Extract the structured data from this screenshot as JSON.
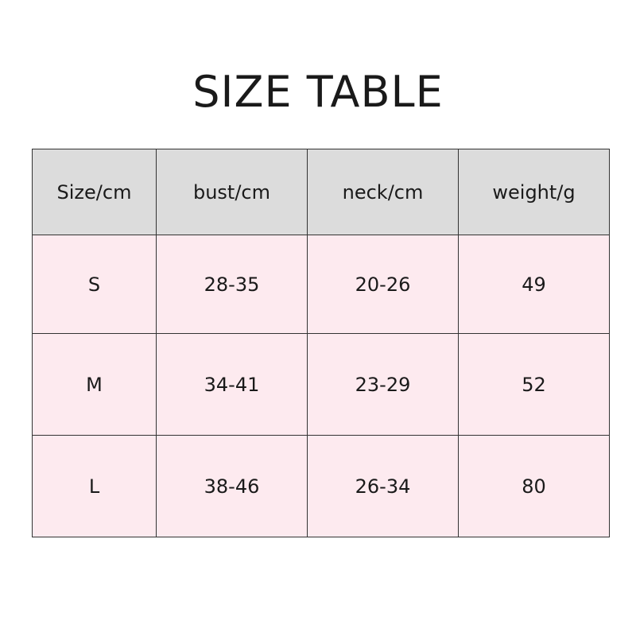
{
  "title": "SIZE TABLE",
  "colors": {
    "header_bg": "#dcdcdc",
    "row_bg": "#fdeaef",
    "border": "#333333"
  },
  "table": {
    "headers": [
      "Size/cm",
      "bust/cm",
      "neck/cm",
      "weight/g"
    ],
    "rows": [
      [
        "S",
        "28-35",
        "20-26",
        "49"
      ],
      [
        "M",
        "34-41",
        "23-29",
        "52"
      ],
      [
        "L",
        "38-46",
        "26-34",
        "80"
      ]
    ]
  }
}
